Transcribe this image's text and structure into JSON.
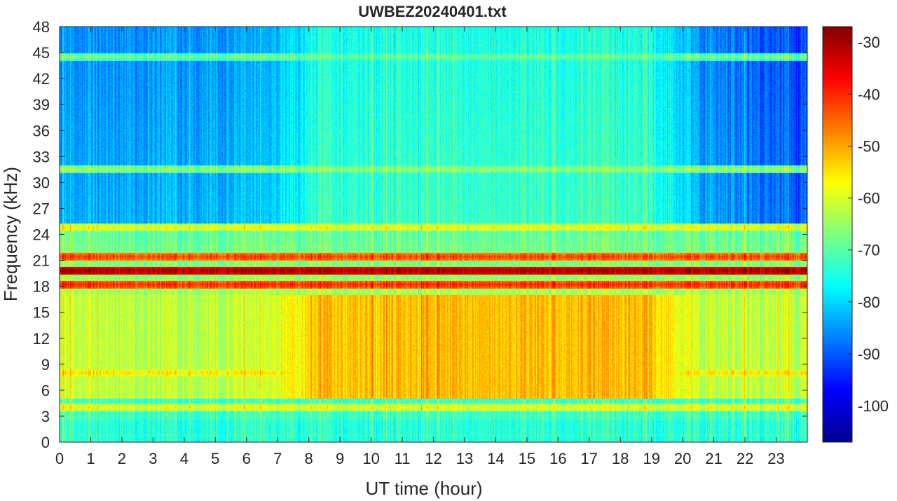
{
  "chart_data": {
    "type": "heatmap",
    "title": "UWBEZ20240401.txt",
    "xlabel": "UT time (hour)",
    "ylabel": "Frequency (kHz)",
    "xlim": [
      0,
      24
    ],
    "ylim": [
      0,
      48
    ],
    "x_ticks": [
      "0",
      "1",
      "2",
      "3",
      "4",
      "5",
      "6",
      "7",
      "8",
      "9",
      "10",
      "11",
      "12",
      "13",
      "14",
      "15",
      "16",
      "17",
      "18",
      "19",
      "20",
      "21",
      "22",
      "23"
    ],
    "y_ticks": [
      "0",
      "3",
      "6",
      "9",
      "12",
      "15",
      "18",
      "21",
      "24",
      "27",
      "30",
      "33",
      "36",
      "39",
      "42",
      "45",
      "48"
    ],
    "colorbar": {
      "colormap": "jet",
      "range": [
        -107,
        -27
      ],
      "ticks": [
        "-100",
        "-90",
        "-80",
        "-70",
        "-60",
        "-50",
        "-40",
        "-30"
      ]
    },
    "features": {
      "background_high_freq_level": -85,
      "broadband_emission": {
        "freq_range_khz": [
          5,
          17
        ],
        "time_range_h": [
          8,
          20
        ],
        "level": -52
      },
      "daytime_low_band": {
        "freq_range_khz": [
          3,
          5
        ],
        "level": -60
      },
      "narrowband_lines_khz": [
        {
          "freq": 19.8,
          "level": -30
        },
        {
          "freq": 18.2,
          "level": -40
        },
        {
          "freq": 21.4,
          "level": -42
        },
        {
          "freq": 24.8,
          "level": -58
        },
        {
          "freq": 31.5,
          "level": -65
        },
        {
          "freq": 44.5,
          "level": -68
        },
        {
          "freq": 8.0,
          "level": -55
        },
        {
          "freq": 4.0,
          "level": -58
        },
        {
          "freq": 0.8,
          "level": -72
        }
      ]
    }
  }
}
